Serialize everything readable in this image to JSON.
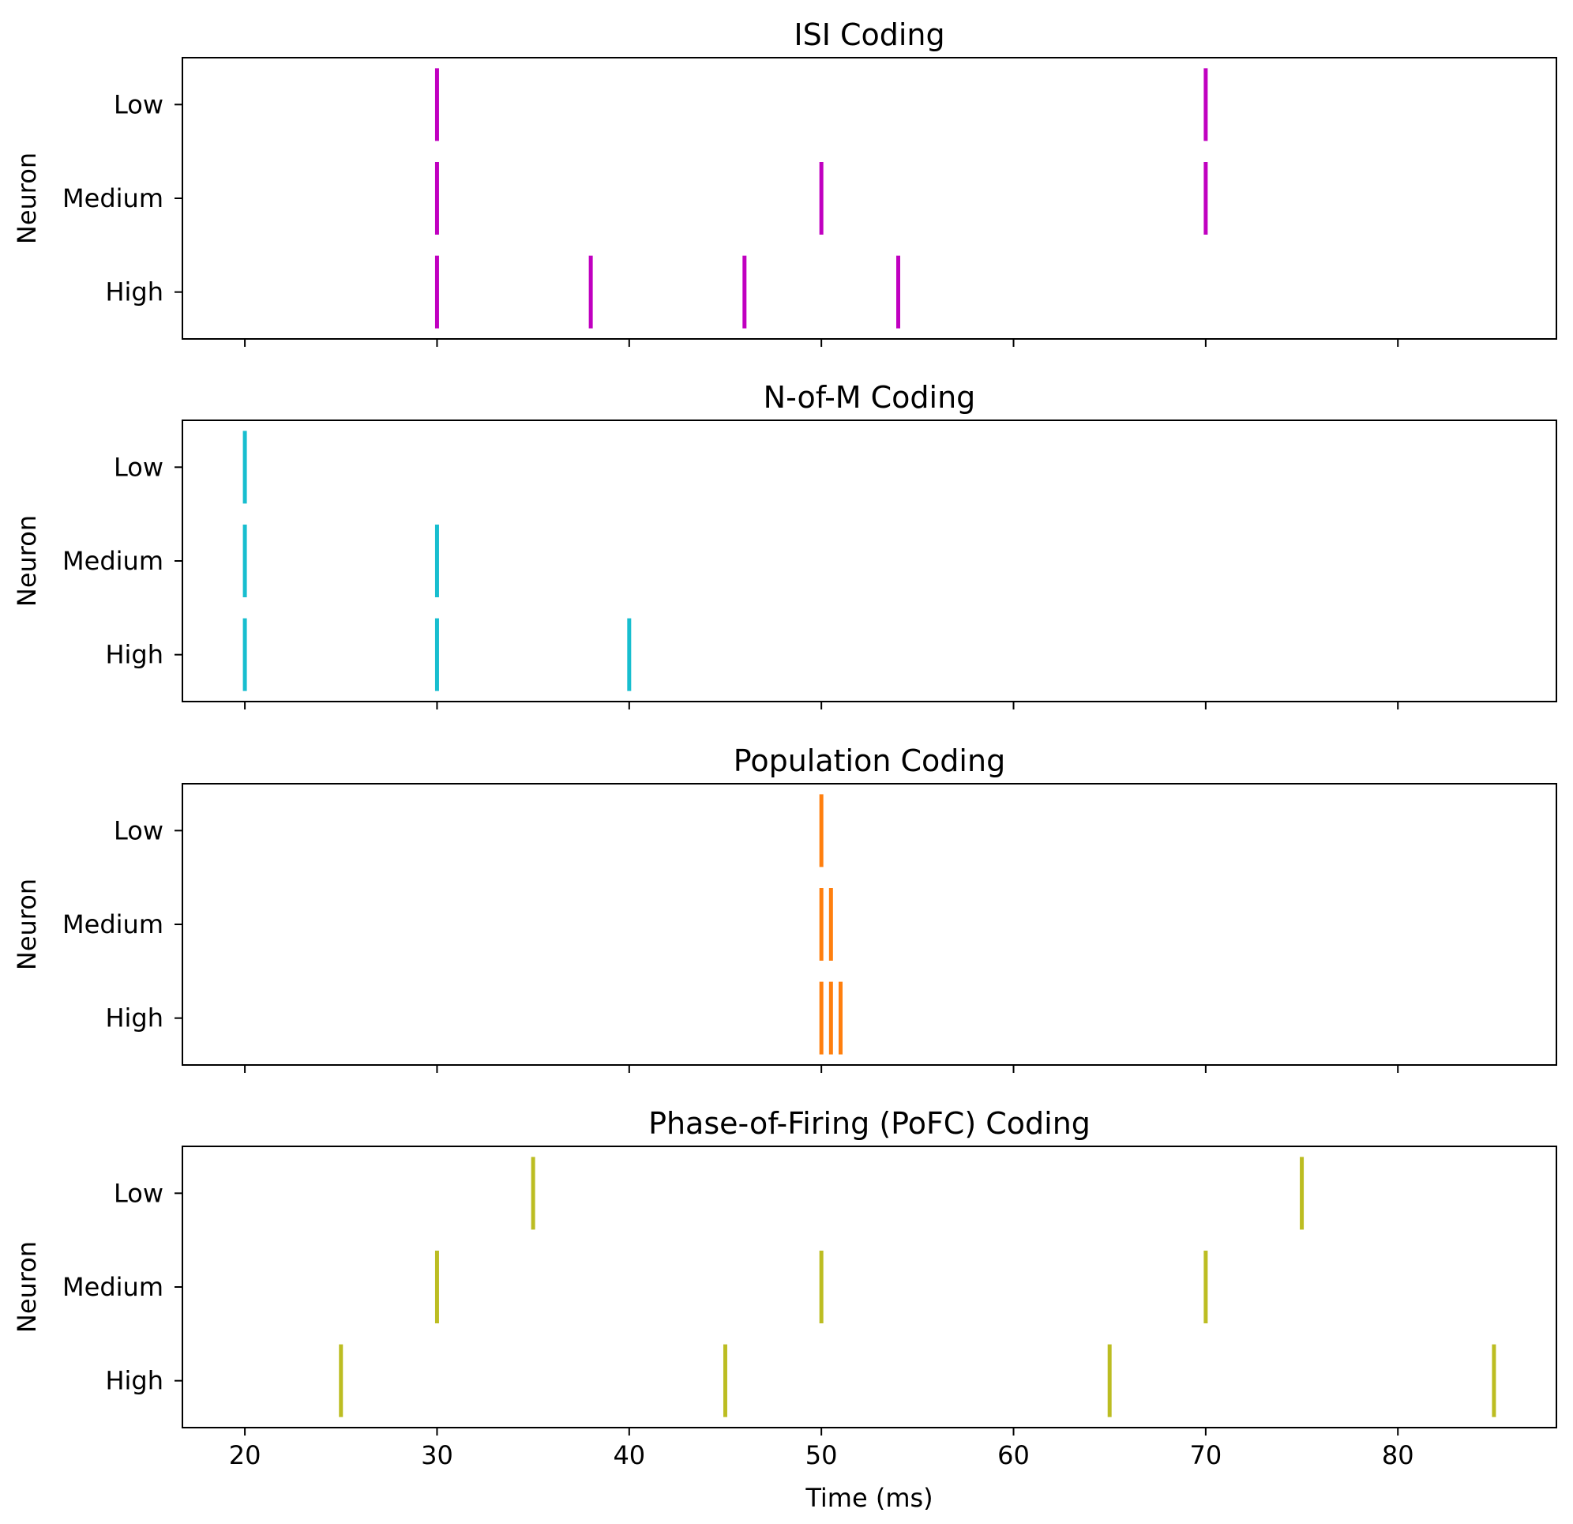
{
  "figure": {
    "x_axis_label": "Time (ms)"
  },
  "chart_data": [
    {
      "type": "scatter",
      "title": "ISI Coding",
      "ylabel": "Neuron",
      "xlabel": "",
      "color": "#c000c0",
      "categories": [
        "Low",
        "Medium",
        "High"
      ],
      "series": [
        {
          "name": "Low",
          "x": [
            30,
            70
          ]
        },
        {
          "name": "Medium",
          "x": [
            30,
            50,
            70
          ]
        },
        {
          "name": "High",
          "x": [
            30,
            38,
            46,
            54
          ]
        }
      ]
    },
    {
      "type": "scatter",
      "title": "N-of-M Coding",
      "ylabel": "Neuron",
      "xlabel": "",
      "color": "#17becf",
      "categories": [
        "Low",
        "Medium",
        "High"
      ],
      "series": [
        {
          "name": "Low",
          "x": [
            20
          ]
        },
        {
          "name": "Medium",
          "x": [
            20,
            30
          ]
        },
        {
          "name": "High",
          "x": [
            20,
            30,
            40
          ]
        }
      ]
    },
    {
      "type": "scatter",
      "title": "Population Coding",
      "ylabel": "Neuron",
      "xlabel": "",
      "color": "#ff7f0e",
      "categories": [
        "Low",
        "Medium",
        "High"
      ],
      "series": [
        {
          "name": "Low",
          "x": [
            50
          ]
        },
        {
          "name": "Medium",
          "x": [
            50,
            50.5
          ]
        },
        {
          "name": "High",
          "x": [
            50,
            50.5,
            51
          ]
        }
      ]
    },
    {
      "type": "scatter",
      "title": "Phase-of-Firing (PoFC) Coding",
      "ylabel": "Neuron",
      "xlabel": "Time (ms)",
      "color": "#bcbd22",
      "categories": [
        "Low",
        "Medium",
        "High"
      ],
      "series": [
        {
          "name": "Low",
          "x": [
            35,
            75
          ]
        },
        {
          "name": "Medium",
          "x": [
            30,
            50,
            70
          ]
        },
        {
          "name": "High",
          "x": [
            25,
            45,
            65,
            85
          ]
        }
      ]
    }
  ],
  "x_axis": {
    "xlim": [
      16.75,
      88.25
    ],
    "ticks": [
      20,
      30,
      40,
      50,
      60,
      70,
      80
    ],
    "tick_labels": [
      "20",
      "30",
      "40",
      "50",
      "60",
      "70",
      "80"
    ]
  }
}
